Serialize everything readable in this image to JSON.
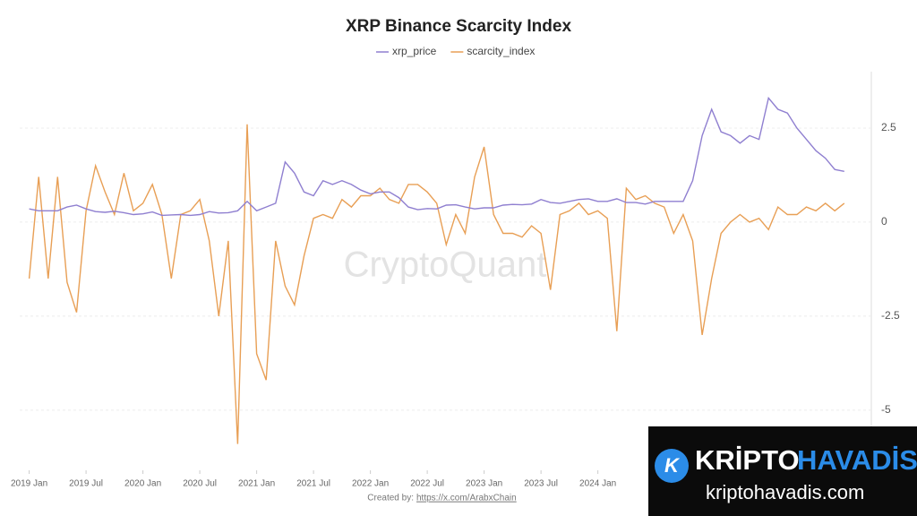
{
  "chart_data": {
    "type": "line",
    "title": "XRP Binance Scarcity Index",
    "watermark": "CryptoQuant",
    "source_prefix": "Created by:",
    "source_link": "https://x.com/ArabxChain",
    "x": [
      "2019-01",
      "2019-02",
      "2019-03",
      "2019-04",
      "2019-05",
      "2019-06",
      "2019-07",
      "2019-08",
      "2019-09",
      "2019-10",
      "2019-11",
      "2019-12",
      "2020-01",
      "2020-02",
      "2020-03",
      "2020-04",
      "2020-05",
      "2020-06",
      "2020-07",
      "2020-08",
      "2020-09",
      "2020-10",
      "2020-11",
      "2020-12",
      "2021-01",
      "2021-02",
      "2021-03",
      "2021-04",
      "2021-05",
      "2021-06",
      "2021-07",
      "2021-08",
      "2021-09",
      "2021-10",
      "2021-11",
      "2021-12",
      "2022-01",
      "2022-02",
      "2022-03",
      "2022-04",
      "2022-05",
      "2022-06",
      "2022-07",
      "2022-08",
      "2022-09",
      "2022-10",
      "2022-11",
      "2022-12",
      "2023-01",
      "2023-02",
      "2023-03",
      "2023-04",
      "2023-05",
      "2023-06",
      "2023-07",
      "2023-08",
      "2023-09",
      "2023-10",
      "2023-11",
      "2023-12",
      "2024-01",
      "2024-02",
      "2024-03",
      "2024-04",
      "2024-05",
      "2024-06",
      "2024-07",
      "2024-08",
      "2024-09",
      "2024-10",
      "2024-11",
      "2024-12",
      "2025-01",
      "2025-02",
      "2025-03",
      "2025-04",
      "2025-05",
      "2025-06",
      "2025-07",
      "2025-08",
      "2025-09",
      "2025-10",
      "2025-11",
      "2025-12",
      "2026-01",
      "2026-02",
      "2026-03"
    ],
    "series": [
      {
        "name": "xrp_price",
        "color": "#8f7fd0",
        "values": [
          0.35,
          0.3,
          0.3,
          0.3,
          0.4,
          0.45,
          0.35,
          0.28,
          0.26,
          0.29,
          0.25,
          0.2,
          0.22,
          0.27,
          0.18,
          0.19,
          0.2,
          0.18,
          0.2,
          0.28,
          0.24,
          0.25,
          0.3,
          0.55,
          0.3,
          0.4,
          0.5,
          1.6,
          1.3,
          0.8,
          0.7,
          1.1,
          1.0,
          1.1,
          1.0,
          0.85,
          0.75,
          0.8,
          0.8,
          0.65,
          0.4,
          0.33,
          0.36,
          0.35,
          0.45,
          0.46,
          0.4,
          0.35,
          0.38,
          0.38,
          0.45,
          0.47,
          0.46,
          0.48,
          0.6,
          0.52,
          0.5,
          0.55,
          0.6,
          0.62,
          0.55,
          0.55,
          0.62,
          0.52,
          0.52,
          0.48,
          0.55,
          0.55,
          0.55,
          0.55,
          1.1,
          2.3,
          3.0,
          2.4,
          2.3,
          2.1,
          2.3,
          2.2,
          3.3,
          3.0,
          2.9,
          2.5,
          2.2,
          1.9,
          1.7,
          1.4,
          1.35
        ]
      },
      {
        "name": "scarcity_index",
        "color": "#e89f55",
        "values": [
          -1.5,
          1.2,
          -1.5,
          1.2,
          -1.6,
          -2.4,
          0.3,
          1.5,
          0.8,
          0.2,
          1.3,
          0.3,
          0.5,
          1.0,
          0.2,
          -1.5,
          0.2,
          0.3,
          0.6,
          -0.5,
          -2.5,
          -0.5,
          -5.9,
          2.6,
          -3.5,
          -4.2,
          -0.5,
          -1.7,
          -2.2,
          -0.9,
          0.1,
          0.2,
          0.1,
          0.6,
          0.4,
          0.7,
          0.7,
          0.9,
          0.6,
          0.5,
          1.0,
          1.0,
          0.8,
          0.5,
          -0.6,
          0.2,
          -0.3,
          1.2,
          2.0,
          0.2,
          -0.3,
          -0.3,
          -0.4,
          -0.1,
          -0.3,
          -1.8,
          0.2,
          0.3,
          0.5,
          0.2,
          0.3,
          0.1,
          -2.9,
          0.9,
          0.6,
          0.7,
          0.5,
          0.4,
          -0.3,
          0.2,
          -0.5,
          -3.0,
          -1.5,
          -0.3,
          0.0,
          0.2,
          0.0,
          0.1,
          -0.2,
          0.4,
          0.2,
          0.2,
          0.4,
          0.3,
          0.5,
          0.3,
          0.5
        ]
      }
    ],
    "xlim": [
      "2018-12",
      "2026-05"
    ],
    "xticks": [
      {
        "value": "2019-01",
        "label": "2019 Jan"
      },
      {
        "value": "2019-07",
        "label": "2019 Jul"
      },
      {
        "value": "2020-01",
        "label": "2020 Jan"
      },
      {
        "value": "2020-07",
        "label": "2020 Jul"
      },
      {
        "value": "2021-01",
        "label": "2021 Jan"
      },
      {
        "value": "2021-07",
        "label": "2021 Jul"
      },
      {
        "value": "2022-01",
        "label": "2022 Jan"
      },
      {
        "value": "2022-07",
        "label": "2022 Jul"
      },
      {
        "value": "2023-01",
        "label": "2023 Jan"
      },
      {
        "value": "2023-07",
        "label": "2023 Jul"
      },
      {
        "value": "2024-01",
        "label": "2024 Jan"
      }
    ],
    "ylim": [
      -6.6,
      4
    ],
    "yticks": [
      2.5,
      0,
      -2.5,
      -5
    ],
    "grid": true
  },
  "overlay": {
    "brand_left": "KRİPTO",
    "brand_right": "HAVADİS",
    "url": "kriptohavadis.com"
  }
}
